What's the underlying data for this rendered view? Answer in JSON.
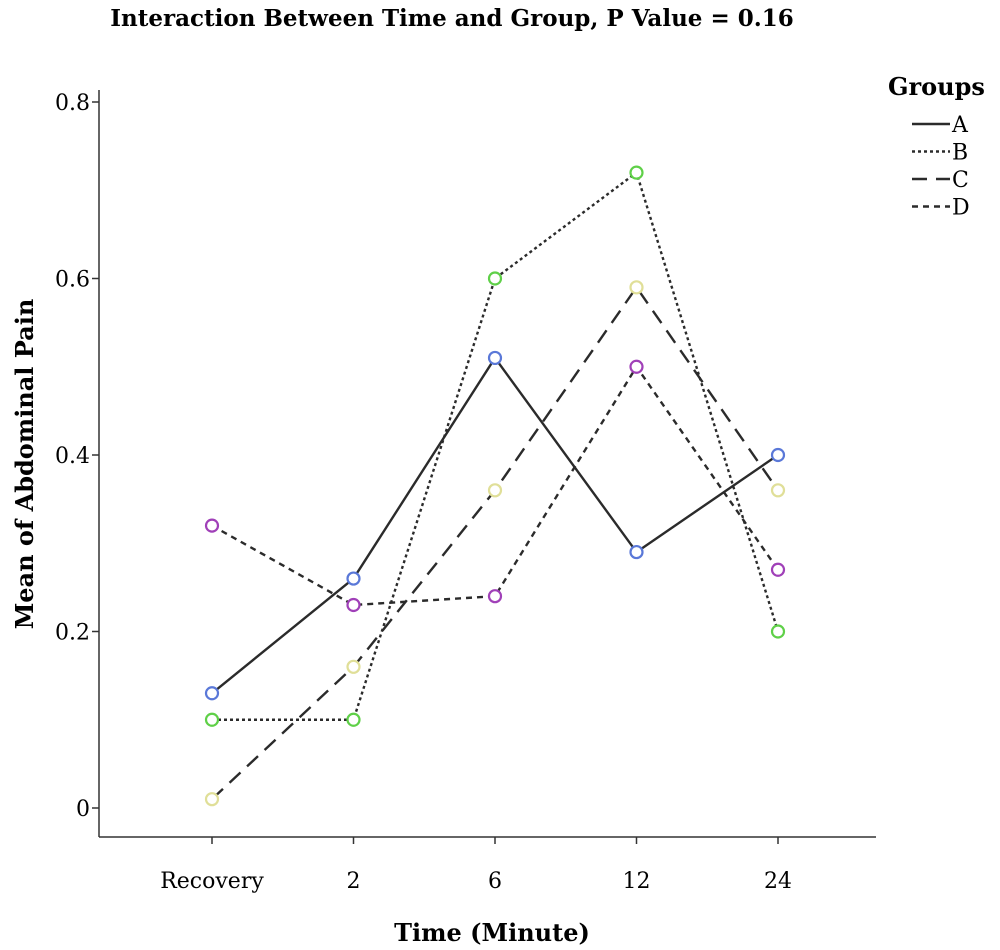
{
  "chart_data": {
    "type": "line",
    "title": "Interaction Between Time and Group, P Value = 0.16",
    "xlabel": "Time (Minute)",
    "ylabel": "Mean of Abdominal Pain",
    "categories": [
      "Recovery",
      "2",
      "6",
      "12",
      "24"
    ],
    "ylim": [
      0,
      0.8
    ],
    "yticks": [
      "0",
      "0.2",
      "0.4",
      "0.6",
      "0.8"
    ],
    "yticks_values": [
      0,
      0.2,
      0.4,
      0.6,
      0.8
    ],
    "grid": false,
    "legend": {
      "title": "Groups",
      "position": "top-right"
    },
    "series": [
      {
        "name": "A",
        "values": [
          0.13,
          0.26,
          0.51,
          0.29,
          0.4
        ],
        "line_style": "solid",
        "marker_color": "#5a78d8"
      },
      {
        "name": "B",
        "values": [
          0.1,
          0.1,
          0.6,
          0.72,
          0.2
        ],
        "line_style": "dotted",
        "marker_color": "#5fd048"
      },
      {
        "name": "C",
        "values": [
          0.01,
          0.16,
          0.36,
          0.59,
          0.36
        ],
        "line_style": "dashed",
        "marker_color": "#e0df98"
      },
      {
        "name": "D",
        "values": [
          0.32,
          0.23,
          0.24,
          0.5,
          0.27
        ],
        "line_style": "short-dashed",
        "marker_color": "#a040b8"
      }
    ],
    "marker": "open-circle",
    "line_color": "#2b2b2b"
  }
}
